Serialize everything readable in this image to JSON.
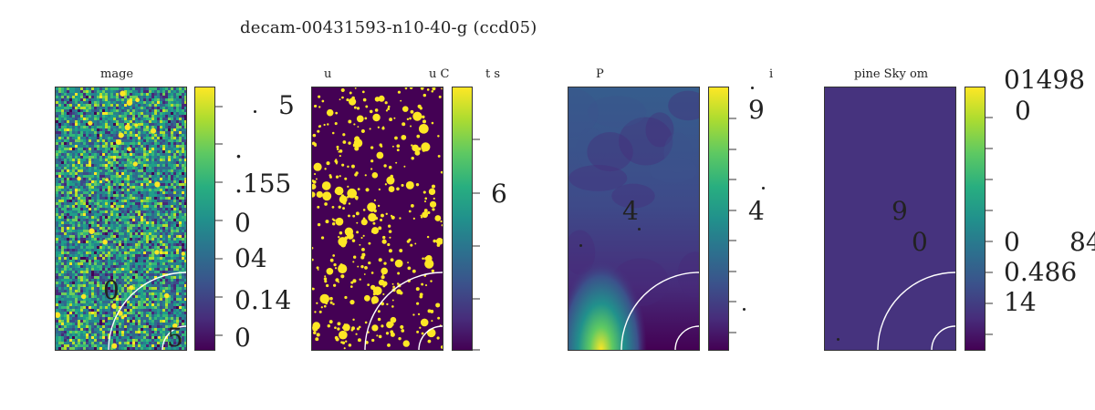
{
  "suptitle": "decam-00431593-n10-40-g (ccd05)",
  "colors": {
    "viridis_dark": "#440154",
    "viridis_mid": "#21918c",
    "viridis_bright": "#fde725",
    "sky_flat": "#46337e",
    "circle": "#ffffff"
  },
  "chart_data": [
    {
      "type": "heatmap",
      "title": "mage",
      "colormap": "viridis",
      "tick_labels": [
        ".",
        "5",
        ".",
        ".155",
        "0",
        "04",
        "0.14",
        "0"
      ],
      "overlay_labels": [
        "0",
        "5"
      ]
    },
    {
      "type": "heatmap",
      "title": "u",
      "title_extra": [
        "u C",
        "t  s"
      ],
      "colormap": "viridis",
      "tick_labels": [
        "6"
      ]
    },
    {
      "type": "heatmap",
      "title": "P",
      "title_extra": [
        "i"
      ],
      "colormap": "viridis",
      "tick_labels": [
        "9",
        ".",
        "4",
        "."
      ],
      "overlay_labels": [
        "4"
      ]
    },
    {
      "type": "heatmap",
      "title": "pine Sky  om",
      "colormap": "viridis",
      "tick_labels": [
        "01498",
        "0",
        "0",
        "0.486",
        "14",
        "84"
      ],
      "overlay_labels": [
        "9",
        "0"
      ]
    }
  ]
}
